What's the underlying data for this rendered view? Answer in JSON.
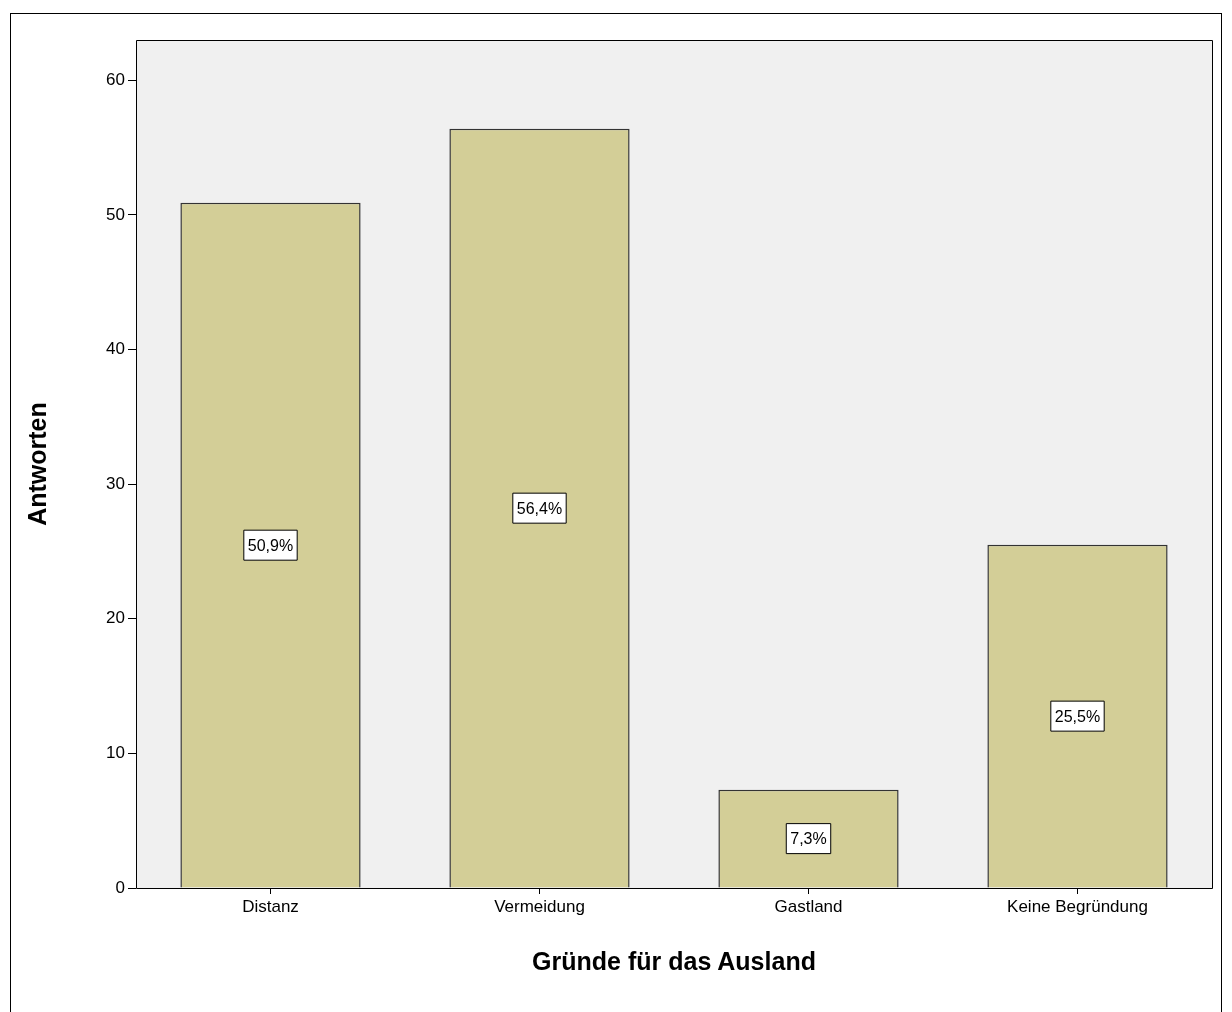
{
  "chart_data": {
    "type": "bar",
    "xlabel": "Gründe für das Ausland",
    "ylabel": "Antworten",
    "categories": [
      "Distanz",
      "Vermeidung",
      "Gastland",
      "Keine Begründung"
    ],
    "values": [
      50.9,
      56.4,
      7.3,
      25.5
    ],
    "value_labels": [
      "50,9%",
      "56,4%",
      "7,3%",
      "25,5%"
    ],
    "color": "#d3ce97",
    "ylim": [
      0,
      63
    ],
    "yticks": [
      0,
      10,
      20,
      30,
      40,
      50,
      60
    ]
  }
}
